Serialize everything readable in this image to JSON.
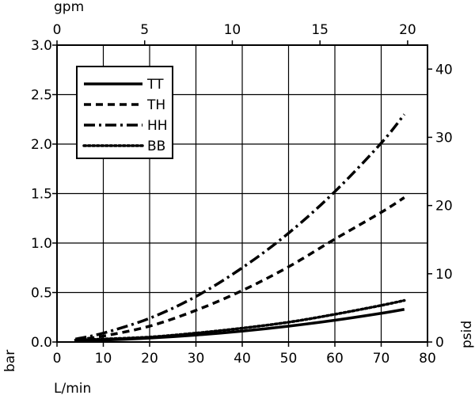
{
  "chart_data": {
    "type": "line",
    "title": "",
    "xlabel": "L/min",
    "ylabel": "bar",
    "x2label": "gpm",
    "y2label": "psid",
    "xlim": [
      0,
      80
    ],
    "ylim": [
      0,
      3.0
    ],
    "x2lim": [
      0,
      21.134
    ],
    "y2lim": [
      0,
      43.51
    ],
    "xticks": [
      "0",
      "10",
      "20",
      "30",
      "40",
      "50",
      "60",
      "70",
      "80"
    ],
    "xtick_values": [
      0,
      10,
      20,
      30,
      40,
      50,
      60,
      70,
      80
    ],
    "yticks": [
      "0.0",
      "0.5",
      "1.0",
      "1.5",
      "2.0",
      "2.5",
      "3.0"
    ],
    "ytick_values": [
      0,
      0.5,
      1.0,
      1.5,
      2.0,
      2.5,
      3.0
    ],
    "x2ticks": [
      "0",
      "5",
      "10",
      "15",
      "20"
    ],
    "x2tick_values": [
      0,
      5,
      10,
      15,
      20
    ],
    "y2ticks": [
      "0",
      "10",
      "20",
      "30",
      "40"
    ],
    "y2tick_values": [
      0,
      10,
      20,
      30,
      40
    ],
    "grid": true,
    "legend_position": "top-left",
    "series": [
      {
        "name": "TT",
        "style": "solid",
        "x": [
          4,
          10,
          20,
          30,
          40,
          50,
          60,
          70,
          75
        ],
        "y": [
          0.02,
          0.02,
          0.04,
          0.07,
          0.11,
          0.16,
          0.22,
          0.29,
          0.33
        ]
      },
      {
        "name": "TH",
        "style": "dashed",
        "x": [
          4,
          10,
          20,
          30,
          40,
          50,
          60,
          70,
          75
        ],
        "y": [
          0.02,
          0.06,
          0.16,
          0.32,
          0.52,
          0.76,
          1.04,
          1.31,
          1.46
        ]
      },
      {
        "name": "HH",
        "style": "dashdot",
        "x": [
          4,
          10,
          20,
          30,
          40,
          50,
          60,
          70,
          75
        ],
        "y": [
          0.03,
          0.09,
          0.24,
          0.46,
          0.75,
          1.1,
          1.52,
          2.01,
          2.3
        ]
      },
      {
        "name": "BB",
        "style": "dotted",
        "x": [
          4,
          10,
          20,
          30,
          40,
          50,
          60,
          70,
          75
        ],
        "y": [
          0.02,
          0.03,
          0.05,
          0.09,
          0.14,
          0.2,
          0.28,
          0.37,
          0.42
        ]
      }
    ]
  },
  "colors": {
    "line": "#000000",
    "background": "#ffffff"
  }
}
